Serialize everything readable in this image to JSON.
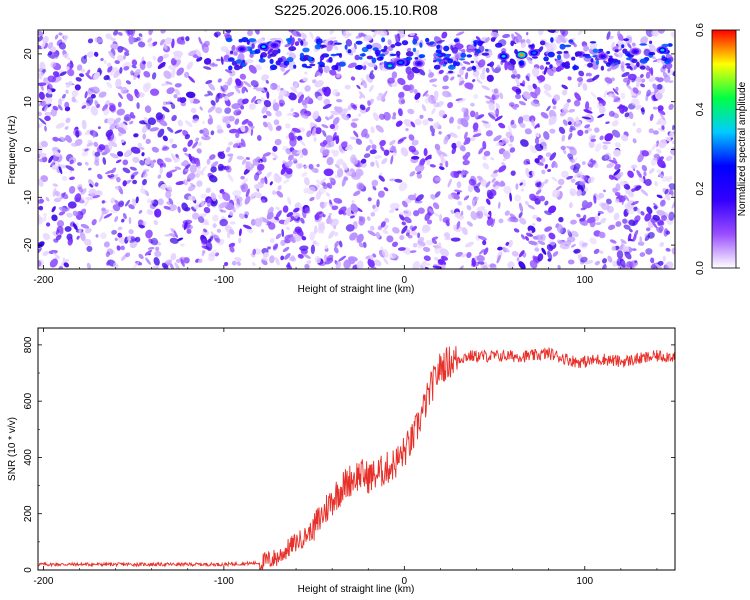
{
  "chart_data": [
    {
      "type": "heatmap",
      "title": "S225.2026.006.15.10.R08",
      "xlabel": "Height of straight line (km)",
      "ylabel": "Frequency (Hz)",
      "xlim": [
        -203,
        150
      ],
      "ylim": [
        -25,
        25
      ],
      "x_ticks": [
        -200,
        -100,
        0,
        100
      ],
      "y_ticks": [
        -20,
        -10,
        0,
        10,
        20
      ],
      "colorbar": {
        "label": "Normalized spectral amplitude",
        "range": [
          0.0,
          0.6
        ],
        "ticks": [
          "0.0",
          "0.2",
          "0.4",
          "0.6"
        ],
        "tick_values": [
          0.0,
          0.2,
          0.4,
          0.6
        ],
        "colormap": [
          "#ffffff",
          "#9a4dff",
          "#3300ff",
          "#0000ff",
          "#00ccff",
          "#00ff44",
          "#ffff00",
          "#ff0000"
        ]
      },
      "high_amplitude_spots": [
        {
          "x": -90,
          "y": 21,
          "value": 0.2
        },
        {
          "x": -78,
          "y": 21.5,
          "value": 0.35
        },
        {
          "x": -72,
          "y": 21.8,
          "value": 0.2
        },
        {
          "x": -8,
          "y": 17.5,
          "value": 0.4
        },
        {
          "x": -2,
          "y": 18.2,
          "value": 0.3
        },
        {
          "x": 8,
          "y": 18,
          "value": 0.2
        },
        {
          "x": 55,
          "y": 19.5,
          "value": 0.35
        },
        {
          "x": 65,
          "y": 19.8,
          "value": 0.55
        },
        {
          "x": 72,
          "y": 20.2,
          "value": 0.3
        },
        {
          "x": 110,
          "y": 19.5,
          "value": 0.2
        },
        {
          "x": 128,
          "y": 20.5,
          "value": 0.2
        },
        {
          "x": 143,
          "y": 20.8,
          "value": 0.35
        }
      ]
    },
    {
      "type": "line",
      "xlabel": "Height of straight line (km)",
      "ylabel": "SNR (10 * v/v)",
      "xlim": [
        -203,
        150
      ],
      "ylim": [
        0,
        860
      ],
      "x_ticks": [
        -200,
        -100,
        0,
        100
      ],
      "y_ticks": [
        0,
        200,
        400,
        600,
        800
      ],
      "color": "#e8302a",
      "series": [
        {
          "x": [
            -203,
            -150,
            -100,
            -80,
            -70,
            -62,
            -55,
            -50,
            -45,
            -40,
            -35,
            -30,
            -25,
            -20,
            -15,
            -10,
            -5,
            0,
            5,
            10,
            15,
            20,
            25,
            30,
            35,
            40,
            50,
            60,
            70,
            80,
            90,
            95,
            100,
            110,
            120,
            130,
            140,
            150
          ],
          "values": [
            20,
            20,
            20,
            25,
            45,
            90,
            120,
            150,
            200,
            250,
            290,
            320,
            340,
            330,
            340,
            360,
            380,
            420,
            470,
            560,
            650,
            720,
            740,
            750,
            760,
            760,
            760,
            760,
            760,
            770,
            750,
            740,
            740,
            750,
            740,
            750,
            760,
            760
          ]
        }
      ]
    }
  ]
}
